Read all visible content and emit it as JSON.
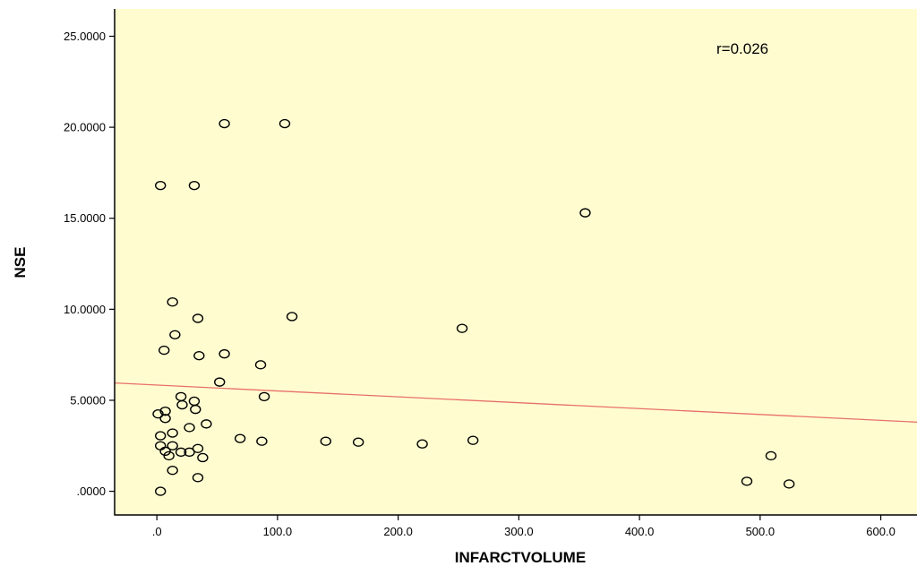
{
  "chart_data": {
    "type": "scatter",
    "title": "",
    "xlabel": "INFARCTVOLUME",
    "ylabel": "NSE",
    "xlim": [
      -35,
      630
    ],
    "ylim": [
      -1.3,
      26.5
    ],
    "x_ticks": [
      0,
      100,
      200,
      300,
      400,
      500,
      600
    ],
    "x_tick_labels": [
      ".0",
      "100.0",
      "200.0",
      "300.0",
      "400.0",
      "500.0",
      "600.0"
    ],
    "y_ticks": [
      0,
      5,
      10,
      15,
      20,
      25
    ],
    "y_tick_labels": [
      ".0000",
      "5.0000",
      "10.0000",
      "15.0000",
      "20.0000",
      "25.0000"
    ],
    "annotation": "r=0.026",
    "background_color": "#fffdd0",
    "marker_color": "#000000",
    "fit_line_color": "#e8706a",
    "grid": false,
    "fit_line": {
      "x": [
        -35,
        630
      ],
      "y": [
        5.95,
        3.8
      ]
    },
    "points": [
      {
        "x": 56,
        "y": 20.2
      },
      {
        "x": 106,
        "y": 20.2
      },
      {
        "x": 3,
        "y": 16.8
      },
      {
        "x": 31,
        "y": 16.8
      },
      {
        "x": 355,
        "y": 15.3
      },
      {
        "x": 13,
        "y": 10.4
      },
      {
        "x": 34,
        "y": 9.5
      },
      {
        "x": 112,
        "y": 9.6
      },
      {
        "x": 253,
        "y": 8.95
      },
      {
        "x": 15,
        "y": 8.6
      },
      {
        "x": 6,
        "y": 7.75
      },
      {
        "x": 35,
        "y": 7.45
      },
      {
        "x": 56,
        "y": 7.55
      },
      {
        "x": 86,
        "y": 6.95
      },
      {
        "x": 52,
        "y": 6.0
      },
      {
        "x": 20,
        "y": 5.2
      },
      {
        "x": 31,
        "y": 4.95
      },
      {
        "x": 21,
        "y": 4.75
      },
      {
        "x": 32,
        "y": 4.5
      },
      {
        "x": 89,
        "y": 5.2
      },
      {
        "x": 7,
        "y": 4.4
      },
      {
        "x": 1,
        "y": 4.25
      },
      {
        "x": 7,
        "y": 4.0
      },
      {
        "x": 41,
        "y": 3.7
      },
      {
        "x": 27,
        "y": 3.5
      },
      {
        "x": 3,
        "y": 3.05
      },
      {
        "x": 13,
        "y": 3.2
      },
      {
        "x": 69,
        "y": 2.9
      },
      {
        "x": 87,
        "y": 2.75
      },
      {
        "x": 140,
        "y": 2.75
      },
      {
        "x": 167,
        "y": 2.7
      },
      {
        "x": 220,
        "y": 2.6
      },
      {
        "x": 262,
        "y": 2.8
      },
      {
        "x": 3,
        "y": 2.5
      },
      {
        "x": 13,
        "y": 2.5
      },
      {
        "x": 34,
        "y": 2.35
      },
      {
        "x": 7,
        "y": 2.2
      },
      {
        "x": 20,
        "y": 2.15
      },
      {
        "x": 27,
        "y": 2.15
      },
      {
        "x": 10,
        "y": 1.95
      },
      {
        "x": 38,
        "y": 1.85
      },
      {
        "x": 13,
        "y": 1.15
      },
      {
        "x": 34,
        "y": 0.75
      },
      {
        "x": 3,
        "y": 0.0
      },
      {
        "x": 509,
        "y": 1.95
      },
      {
        "x": 489,
        "y": 0.55
      },
      {
        "x": 524,
        "y": 0.4
      }
    ]
  }
}
